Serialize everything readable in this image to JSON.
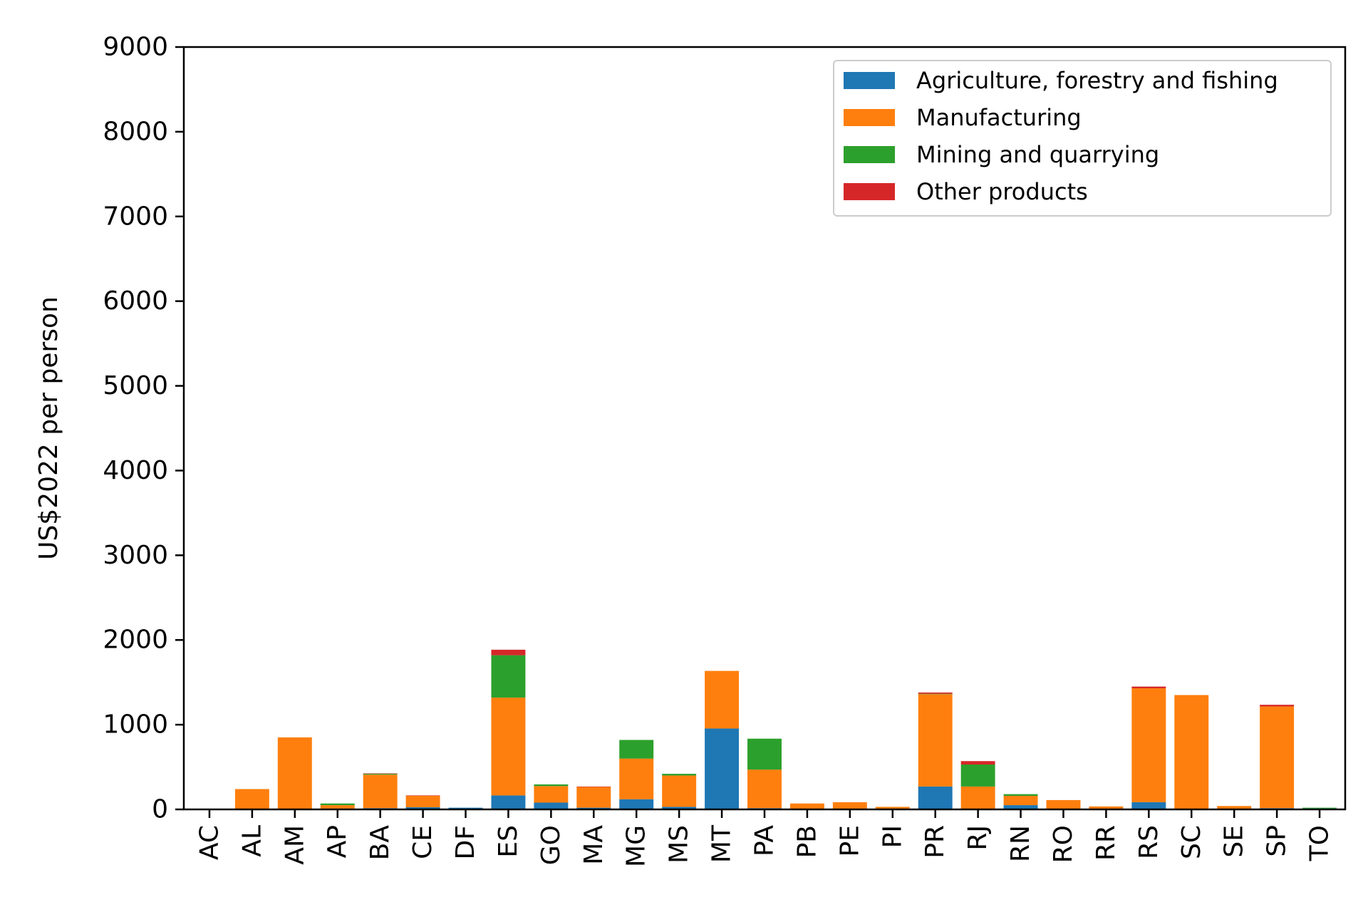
{
  "chart_data": {
    "type": "bar",
    "stacked": true,
    "title": "",
    "xlabel": "",
    "ylabel": "US$2022 per person",
    "ylim": [
      0,
      9000
    ],
    "yticks": [
      0,
      1000,
      2000,
      3000,
      4000,
      5000,
      6000,
      7000,
      8000,
      9000
    ],
    "grid": false,
    "legend_position": "top-right",
    "categories": [
      "AC",
      "AL",
      "AM",
      "AP",
      "BA",
      "CE",
      "DF",
      "ES",
      "GO",
      "MA",
      "MG",
      "MS",
      "MT",
      "PA",
      "PB",
      "PE",
      "PI",
      "PR",
      "RJ",
      "RN",
      "RO",
      "RR",
      "RS",
      "SC",
      "SE",
      "SP",
      "TO"
    ],
    "series": [
      {
        "name": "Agriculture, forestry and fishing",
        "color": "#1f77b4",
        "values": [
          5,
          0,
          0,
          10,
          15,
          25,
          20,
          165,
          80,
          20,
          120,
          30,
          955,
          15,
          0,
          0,
          0,
          270,
          0,
          50,
          0,
          0,
          85,
          0,
          0,
          15,
          10
        ]
      },
      {
        "name": "Manufacturing",
        "color": "#ff7f0e",
        "values": [
          3,
          240,
          850,
          40,
          395,
          135,
          0,
          1155,
          195,
          245,
          480,
          370,
          680,
          455,
          70,
          85,
          30,
          1090,
          270,
          110,
          110,
          35,
          1345,
          1350,
          40,
          1200,
          0
        ]
      },
      {
        "name": "Mining and quarrying",
        "color": "#2ca02c",
        "values": [
          0,
          0,
          0,
          20,
          10,
          0,
          0,
          500,
          20,
          0,
          220,
          20,
          0,
          365,
          0,
          0,
          0,
          5,
          260,
          20,
          0,
          0,
          0,
          0,
          0,
          0,
          10
        ]
      },
      {
        "name": "Other products",
        "color": "#d62728",
        "values": [
          0,
          0,
          0,
          0,
          5,
          5,
          0,
          65,
          0,
          5,
          0,
          0,
          0,
          0,
          0,
          0,
          0,
          15,
          40,
          0,
          0,
          0,
          20,
          0,
          0,
          20,
          0
        ]
      }
    ]
  }
}
